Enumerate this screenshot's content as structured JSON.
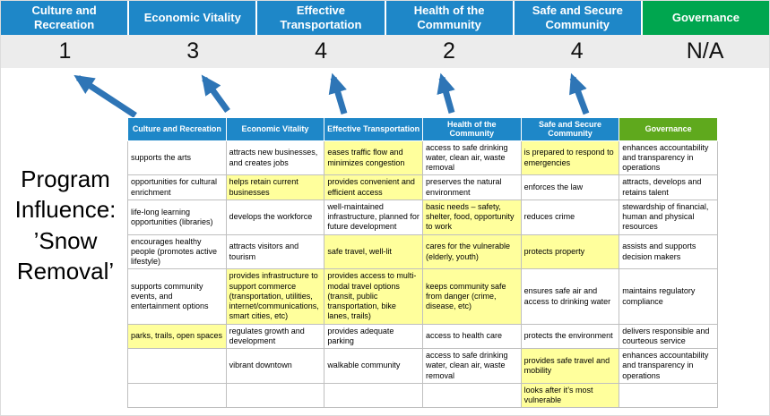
{
  "program_label": "Program Influence: ’Snow Removal’",
  "pillars": [
    {
      "name": "Culture and Recreation",
      "score": "1",
      "color": "#1E87C8"
    },
    {
      "name": "Economic Vitality",
      "score": "3",
      "color": "#1E87C8"
    },
    {
      "name": "Effective Transportation",
      "score": "4",
      "color": "#1E87C8"
    },
    {
      "name": "Health of the Community",
      "score": "2",
      "color": "#1E87C8"
    },
    {
      "name": "Safe and Secure Community",
      "score": "4",
      "color": "#1E87C8"
    },
    {
      "name": "Governance",
      "score": "N/A",
      "color": "#00A64F"
    }
  ],
  "table": {
    "headers": [
      {
        "label": "Culture and Recreation",
        "color": "#1E87C8"
      },
      {
        "label": "Economic Vitality",
        "color": "#1E87C8"
      },
      {
        "label": "Effective Transportation",
        "color": "#1E87C8"
      },
      {
        "label": "Health of the Community",
        "color": "#1E87C8"
      },
      {
        "label": "Safe and Secure Community",
        "color": "#1E87C8"
      },
      {
        "label": "Governance",
        "color": "#5FA91D"
      }
    ],
    "rows": [
      [
        {
          "text": "supports the arts",
          "highlight": false
        },
        {
          "text": "attracts new businesses, and creates jobs",
          "highlight": false
        },
        {
          "text": "eases traffic flow and minimizes congestion",
          "highlight": true
        },
        {
          "text": "access to safe drinking water, clean air, waste removal",
          "highlight": false
        },
        {
          "text": "is prepared to respond to emergencies",
          "highlight": true
        },
        {
          "text": "enhances accountability and transparency in operations",
          "highlight": false
        }
      ],
      [
        {
          "text": "opportunities for cultural enrichment",
          "highlight": false
        },
        {
          "text": "helps retain current businesses",
          "highlight": true
        },
        {
          "text": "provides convenient and efficient access",
          "highlight": true
        },
        {
          "text": "preserves the natural environment",
          "highlight": false
        },
        {
          "text": "enforces the law",
          "highlight": false
        },
        {
          "text": "attracts, develops and retains talent",
          "highlight": false
        }
      ],
      [
        {
          "text": "life-long learning opportunities (libraries)",
          "highlight": false
        },
        {
          "text": "develops the workforce",
          "highlight": false
        },
        {
          "text": "well-maintained infrastructure, planned for future development",
          "highlight": false
        },
        {
          "text": "basic needs – safety, shelter, food, opportunity to work",
          "highlight": true
        },
        {
          "text": "reduces crime",
          "highlight": false
        },
        {
          "text": "stewardship of financial, human and physical resources",
          "highlight": false
        }
      ],
      [
        {
          "text": "encourages healthy people (promotes active lifestyle)",
          "highlight": false
        },
        {
          "text": "attracts visitors and tourism",
          "highlight": false
        },
        {
          "text": "safe travel, well-lit",
          "highlight": true
        },
        {
          "text": "cares for the vulnerable (elderly, youth)",
          "highlight": true
        },
        {
          "text": "protects property",
          "highlight": true
        },
        {
          "text": "assists and supports decision makers",
          "highlight": false
        }
      ],
      [
        {
          "text": "supports community events, and entertainment options",
          "highlight": false
        },
        {
          "text": "provides infrastructure to support commerce (transportation, utilities, internet/communications, smart cities, etc)",
          "highlight": true
        },
        {
          "text": "provides access to multi-modal travel options (transit, public transportation, bike lanes, trails)",
          "highlight": true
        },
        {
          "text": "keeps community safe from danger (crime, disease, etc)",
          "highlight": true
        },
        {
          "text": "ensures safe air and access to drinking water",
          "highlight": false
        },
        {
          "text": "maintains regulatory compliance",
          "highlight": false
        }
      ],
      [
        {
          "text": "parks, trails, open spaces",
          "highlight": true
        },
        {
          "text": "regulates growth and development",
          "highlight": false
        },
        {
          "text": "provides adequate parking",
          "highlight": false
        },
        {
          "text": "access to health care",
          "highlight": false
        },
        {
          "text": "protects the environment",
          "highlight": false
        },
        {
          "text": "delivers responsible and courteous service",
          "highlight": false
        }
      ],
      [
        {
          "text": "",
          "highlight": false
        },
        {
          "text": "vibrant downtown",
          "highlight": false
        },
        {
          "text": "walkable community",
          "highlight": false
        },
        {
          "text": "access to safe drinking water, clean air, waste removal",
          "highlight": false
        },
        {
          "text": "provides safe travel and mobility",
          "highlight": true
        },
        {
          "text": "enhances accountability and transparency in operations",
          "highlight": false
        }
      ],
      [
        {
          "text": "",
          "highlight": false
        },
        {
          "text": "",
          "highlight": false
        },
        {
          "text": "",
          "highlight": false
        },
        {
          "text": "",
          "highlight": false
        },
        {
          "text": "looks after it’s most vulnerable",
          "highlight": true
        },
        {
          "text": "",
          "highlight": false
        }
      ]
    ]
  },
  "colors": {
    "pillar_blue": "#1E87C8",
    "pillar_green": "#00A64F",
    "table_header_green": "#5FA91D",
    "highlight_yellow": "#FFFF9C",
    "score_row_bg": "#ECECEC",
    "arrow_blue": "#2E75B6",
    "grid_border": "#BFBFBF"
  }
}
